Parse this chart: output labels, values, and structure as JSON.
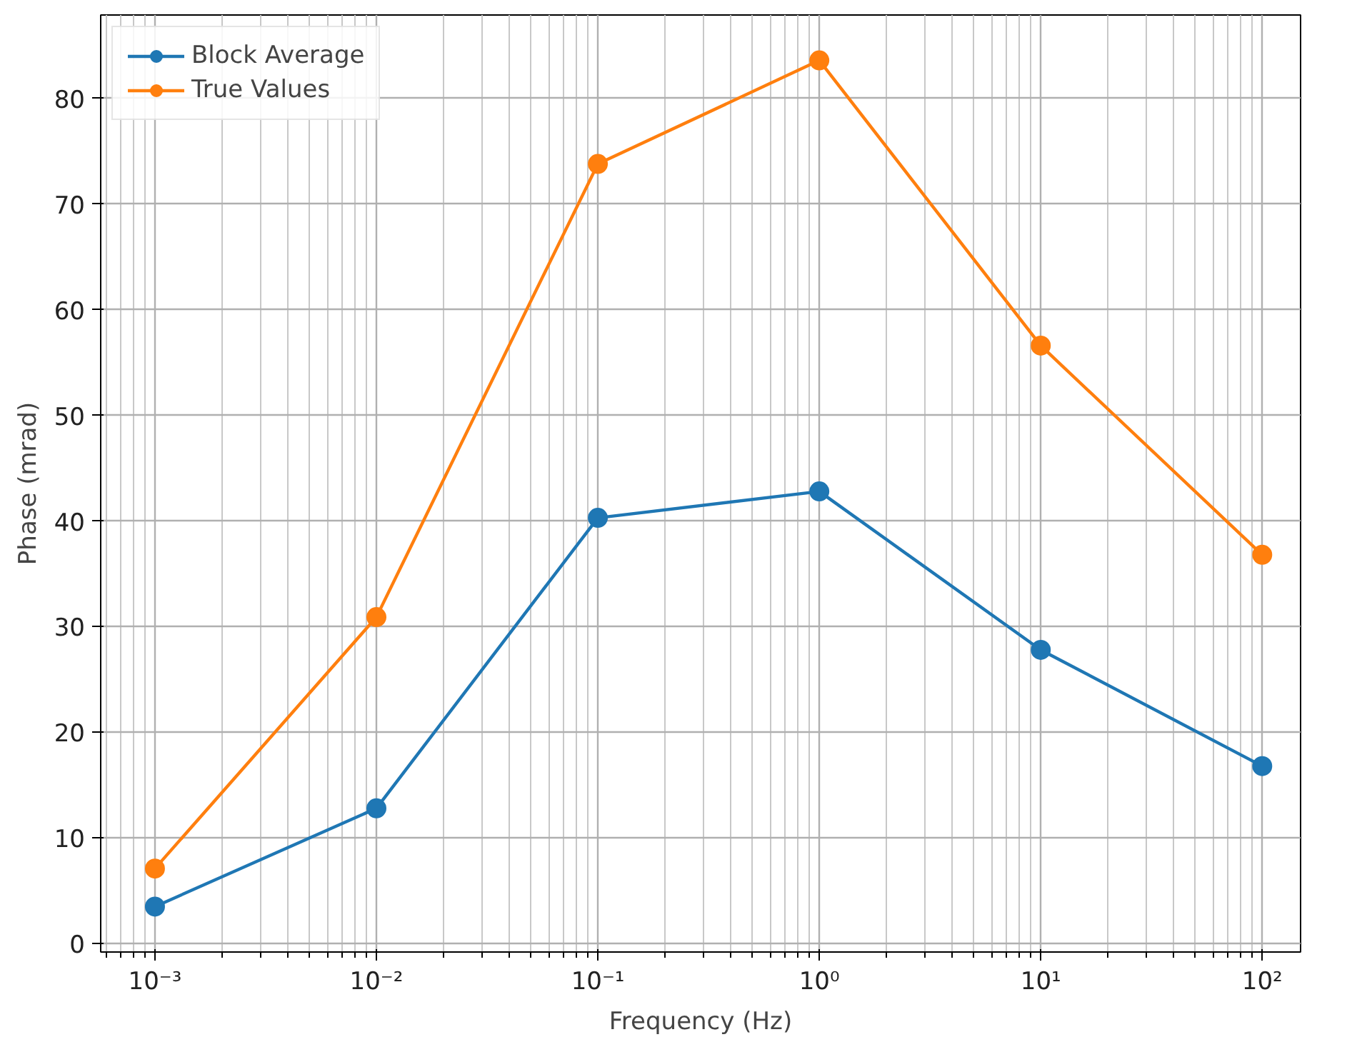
{
  "chart_data": {
    "type": "line",
    "xlabel": "Frequency (Hz)",
    "ylabel": "Phase (mrad)",
    "log": "x",
    "x": [
      0.001,
      0.01,
      0.1,
      1,
      10,
      100
    ],
    "series": [
      {
        "name": "Block Average",
        "color": "#1f77b4",
        "values": [
          3.5,
          12.8,
          40.3,
          42.8,
          27.8,
          16.8
        ]
      },
      {
        "name": "True Values",
        "color": "#ff7f0e",
        "values": [
          7.1,
          30.9,
          73.8,
          83.6,
          56.6,
          36.8
        ]
      }
    ],
    "xlim": [
      0.000569,
      149
    ],
    "ylim": [
      -0.8,
      87.9
    ],
    "xticks": [
      {
        "value": 0.001,
        "label": "10⁻³"
      },
      {
        "value": 0.01,
        "label": "10⁻²"
      },
      {
        "value": 0.1,
        "label": "10⁻¹"
      },
      {
        "value": 1,
        "label": "10⁰"
      },
      {
        "value": 10,
        "label": "10¹"
      },
      {
        "value": 100,
        "label": "10²"
      }
    ],
    "yticks": [
      0,
      10,
      20,
      30,
      40,
      50,
      60,
      70,
      80
    ],
    "grid": true,
    "legend": "top left",
    "marker": "circle",
    "line_style": "solid"
  }
}
